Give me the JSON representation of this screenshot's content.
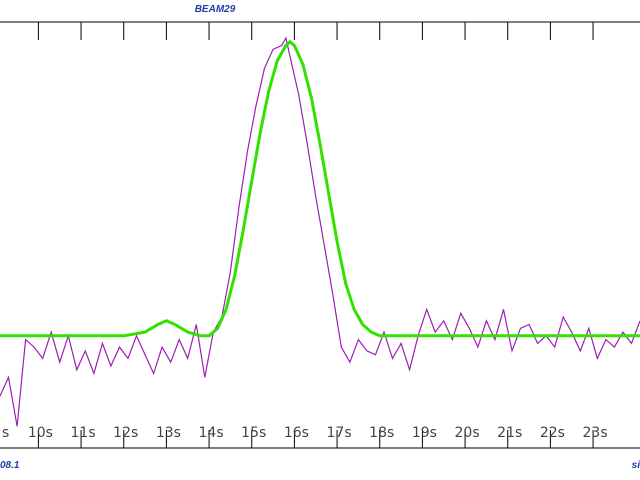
{
  "title": "BEAM29",
  "footer": {
    "left": "08.1",
    "right": "si"
  },
  "colors": {
    "background": "#ffffff",
    "measured": "#9b1fb5",
    "fit": "#33e000",
    "axis": "#000000",
    "text": "#1f3fa8"
  },
  "chart_data": {
    "type": "line",
    "x_tick_labels": [
      "s",
      "10s",
      "11s",
      "12s",
      "13s",
      "14s",
      "15s",
      "16s",
      "17s",
      "18s",
      "19s",
      "20s",
      "21s",
      "22s",
      "23s"
    ],
    "xlim": [
      9.1,
      24.1
    ],
    "ylim": [
      0,
      1
    ],
    "grid": false,
    "series": [
      {
        "role": "measured",
        "x": [
          9.1,
          9.3,
          9.5,
          9.7,
          9.9,
          10.1,
          10.3,
          10.5,
          10.7,
          10.9,
          11.1,
          11.3,
          11.5,
          11.7,
          11.9,
          12.1,
          12.3,
          12.5,
          12.7,
          12.9,
          13.1,
          13.3,
          13.5,
          13.7,
          13.9,
          14.1,
          14.3,
          14.5,
          14.7,
          14.9,
          15.1,
          15.3,
          15.5,
          15.7,
          15.8,
          15.9,
          16.0,
          16.1,
          16.3,
          16.5,
          16.7,
          16.9,
          17.1,
          17.3,
          17.5,
          17.7,
          17.9,
          18.1,
          18.3,
          18.5,
          18.7,
          18.9,
          19.1,
          19.3,
          19.5,
          19.7,
          19.9,
          20.1,
          20.3,
          20.5,
          20.7,
          20.9,
          21.1,
          21.3,
          21.5,
          21.7,
          21.9,
          22.1,
          22.3,
          22.5,
          22.7,
          22.9,
          23.1,
          23.3,
          23.5,
          23.7,
          23.9,
          24.1
        ],
        "y": [
          0.05,
          0.1,
          -0.03,
          0.2,
          0.18,
          0.15,
          0.22,
          0.14,
          0.21,
          0.12,
          0.17,
          0.11,
          0.19,
          0.13,
          0.18,
          0.15,
          0.21,
          0.16,
          0.11,
          0.18,
          0.14,
          0.2,
          0.15,
          0.24,
          0.1,
          0.22,
          0.26,
          0.38,
          0.55,
          0.7,
          0.82,
          0.92,
          0.97,
          0.98,
          1.0,
          0.95,
          0.9,
          0.85,
          0.72,
          0.58,
          0.45,
          0.32,
          0.18,
          0.14,
          0.2,
          0.17,
          0.16,
          0.22,
          0.15,
          0.19,
          0.12,
          0.21,
          0.28,
          0.22,
          0.25,
          0.2,
          0.27,
          0.23,
          0.18,
          0.25,
          0.2,
          0.28,
          0.17,
          0.23,
          0.24,
          0.19,
          0.21,
          0.18,
          0.26,
          0.22,
          0.17,
          0.23,
          0.15,
          0.2,
          0.18,
          0.22,
          0.19,
          0.25
        ]
      },
      {
        "role": "fit",
        "x": [
          9.1,
          9.5,
          10.0,
          10.5,
          11.0,
          11.5,
          12.0,
          12.5,
          12.8,
          13.0,
          13.2,
          13.5,
          13.8,
          14.0,
          14.2,
          14.4,
          14.6,
          14.8,
          15.0,
          15.2,
          15.4,
          15.6,
          15.8,
          15.9,
          16.0,
          16.2,
          16.4,
          16.6,
          16.8,
          17.0,
          17.2,
          17.4,
          17.6,
          17.8,
          18.0,
          18.5,
          19.0,
          20.0,
          21.0,
          22.0,
          23.0,
          24.1
        ],
        "y": [
          0.21,
          0.21,
          0.21,
          0.21,
          0.21,
          0.21,
          0.21,
          0.22,
          0.24,
          0.25,
          0.24,
          0.22,
          0.21,
          0.21,
          0.23,
          0.28,
          0.37,
          0.49,
          0.62,
          0.75,
          0.86,
          0.94,
          0.98,
          0.99,
          0.98,
          0.93,
          0.84,
          0.72,
          0.59,
          0.46,
          0.35,
          0.28,
          0.24,
          0.22,
          0.21,
          0.21,
          0.21,
          0.21,
          0.21,
          0.21,
          0.21,
          0.21
        ]
      }
    ]
  }
}
